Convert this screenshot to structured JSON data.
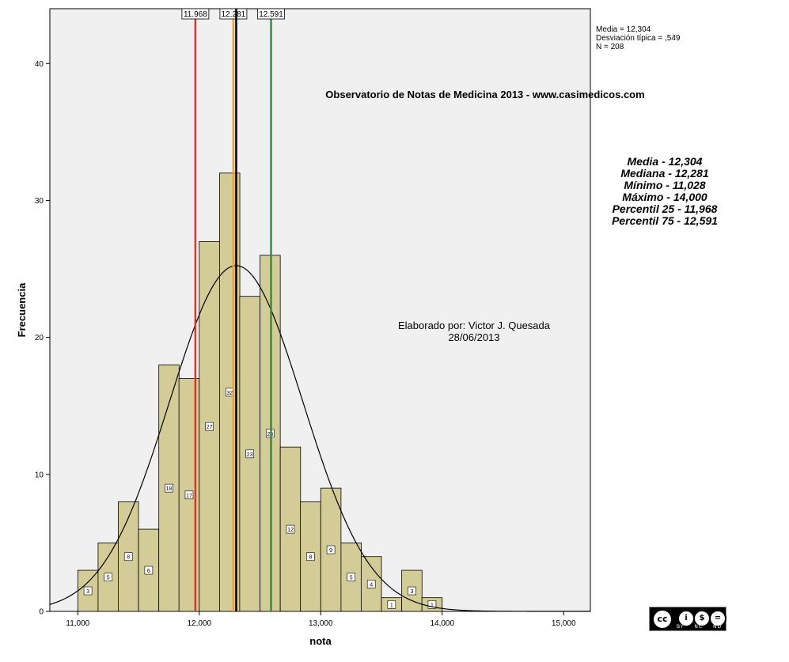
{
  "chart_data": {
    "type": "bar",
    "subtype": "histogram",
    "title": "Observatorio de Notas de Medicina 2013 - www.casimedicos.com",
    "xlabel": "nota",
    "ylabel": "Frecuencia",
    "xlim": [
      10.77,
      15.22
    ],
    "ylim": [
      0,
      44
    ],
    "bin_width": 0.167,
    "bins": [
      {
        "start": 11.0,
        "count": 3
      },
      {
        "start": 11.167,
        "count": 5
      },
      {
        "start": 11.333,
        "count": 8
      },
      {
        "start": 11.5,
        "count": 6
      },
      {
        "start": 11.667,
        "count": 18
      },
      {
        "start": 11.833,
        "count": 17
      },
      {
        "start": 12.0,
        "count": 27
      },
      {
        "start": 12.167,
        "count": 32
      },
      {
        "start": 12.333,
        "count": 23
      },
      {
        "start": 12.5,
        "count": 26
      },
      {
        "start": 12.667,
        "count": 12
      },
      {
        "start": 12.833,
        "count": 8
      },
      {
        "start": 13.0,
        "count": 9
      },
      {
        "start": 13.167,
        "count": 5
      },
      {
        "start": 13.333,
        "count": 4
      },
      {
        "start": 13.5,
        "count": 1
      },
      {
        "start": 13.667,
        "count": 3
      },
      {
        "start": 13.833,
        "count": 1
      }
    ],
    "x_ticks": [
      {
        "value": 11,
        "label": "11,000"
      },
      {
        "value": 12,
        "label": "12,000"
      },
      {
        "value": 13,
        "label": "13,000"
      },
      {
        "value": 14,
        "label": "14,000"
      },
      {
        "value": 15,
        "label": "15,000"
      }
    ],
    "y_ticks": [
      0,
      10,
      20,
      30,
      40
    ],
    "normal_curve": {
      "mean": 12.304,
      "sd": 0.549,
      "n": 208
    },
    "reference_lines": [
      {
        "value": 11.968,
        "label": "11.968",
        "color": "#e8302a"
      },
      {
        "value": 12.281,
        "label": "12.281",
        "color": "#f0a030"
      },
      {
        "value": 12.304,
        "label": "",
        "color": "#000000"
      },
      {
        "value": 12.591,
        "label": "12.591",
        "color": "#1e9a3c"
      }
    ],
    "grid": false,
    "bar_color": "#d4cc96",
    "plot_background": "#f0f0f0"
  },
  "legend_stats": [
    "Media = 12,304",
    "Desviación típica = ,549",
    "N = 208"
  ],
  "annotation": {
    "line1": "Elaborado por: Victor J. Quesada",
    "line2": "28/06/2013"
  },
  "summary_stats": [
    "Media - 12,304",
    "Mediana - 12,281",
    "Mínimo - 11,028",
    "Máximo - 14,000",
    "Percentil 25 - 11,968",
    "Percentil 75 - 12,591"
  ],
  "license": {
    "logo": "cc",
    "tags": [
      "BY",
      "NC",
      "ND"
    ]
  }
}
